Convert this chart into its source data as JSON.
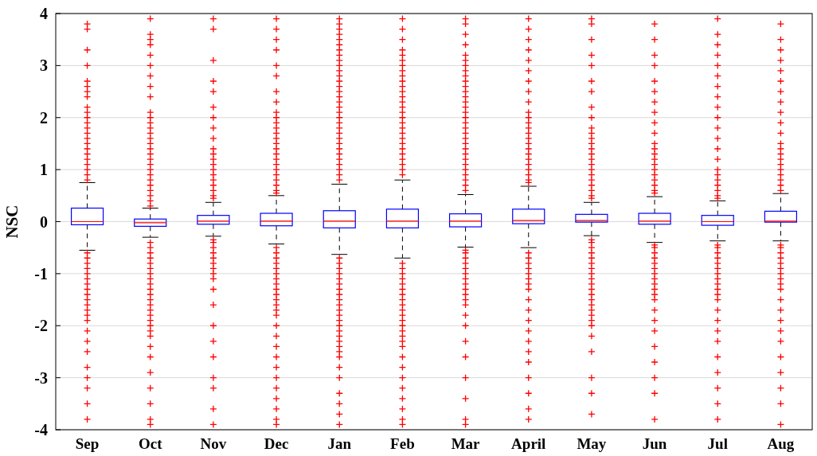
{
  "chart_data": {
    "type": "box",
    "ylabel": "NSC",
    "categories": [
      "Sep",
      "Oct",
      "Nov",
      "Dec",
      "Jan",
      "Feb",
      "Mar",
      "April",
      "May",
      "Jun",
      "Jul",
      "Aug"
    ],
    "ylim": [
      -4,
      4
    ],
    "yticks": [
      -4,
      -3,
      -2,
      -1,
      0,
      1,
      2,
      3,
      4
    ],
    "grid": "y",
    "marker": "cross",
    "series": [
      {
        "color": "#0000ff",
        "boxes": [
          {
            "low": -0.55,
            "q1": -0.06,
            "median": 0,
            "q3": 0.26,
            "high": 0.75,
            "outliers": [
              0.8,
              0.9,
              1,
              1.1,
              1.2,
              1.3,
              1.4,
              1.5,
              1.6,
              1.7,
              1.8,
              1.9,
              2,
              2.1,
              2.2,
              2.4,
              2.5,
              2.6,
              2.7,
              3,
              3.3,
              3.7,
              3.8,
              -0.6,
              -0.7,
              -0.8,
              -0.9,
              -1,
              -1.1,
              -1.2,
              -1.3,
              -1.4,
              -1.5,
              -1.6,
              -1.7,
              -1.8,
              -1.9,
              -2.1,
              -2.3,
              -2.5,
              -2.8,
              -3,
              -3.2,
              -3.5,
              -3.8
            ]
          },
          {
            "low": -0.3,
            "q1": -0.09,
            "median": -0.02,
            "q3": 0.05,
            "high": 0.26,
            "outliers": [
              0.3,
              0.4,
              0.5,
              0.6,
              0.7,
              0.8,
              0.9,
              1,
              1.1,
              1.2,
              1.3,
              1.4,
              1.5,
              1.6,
              1.7,
              1.8,
              1.9,
              2,
              2.1,
              2.4,
              2.6,
              2.8,
              3,
              3.2,
              3.4,
              3.5,
              3.6,
              3.9,
              -0.4,
              -0.5,
              -0.6,
              -0.7,
              -0.8,
              -0.9,
              -1,
              -1.1,
              -1.2,
              -1.3,
              -1.4,
              -1.5,
              -1.6,
              -1.7,
              -1.8,
              -1.9,
              -2,
              -2.1,
              -2.2,
              -2.4,
              -2.6,
              -2.9,
              -3.2,
              -3.5,
              -3.8,
              -3.9
            ]
          },
          {
            "low": -0.28,
            "q1": -0.05,
            "median": 0.01,
            "q3": 0.12,
            "high": 0.37,
            "outliers": [
              0.45,
              0.5,
              0.6,
              0.7,
              0.8,
              0.9,
              1,
              1.1,
              1.2,
              1.3,
              1.4,
              1.6,
              1.8,
              2,
              2.2,
              2.5,
              2.7,
              3.1,
              3.7,
              3.9,
              -0.35,
              -0.4,
              -0.5,
              -0.6,
              -0.7,
              -0.8,
              -0.9,
              -1,
              -1.1,
              -1.3,
              -1.6,
              -2,
              -2.3,
              -2.6,
              -3,
              -3.2,
              -3.6,
              -3.9
            ]
          },
          {
            "low": -0.43,
            "q1": -0.08,
            "median": 0.01,
            "q3": 0.16,
            "high": 0.5,
            "outliers": [
              0.55,
              0.6,
              0.7,
              0.8,
              0.9,
              1,
              1.1,
              1.2,
              1.3,
              1.4,
              1.5,
              1.6,
              1.7,
              1.8,
              1.9,
              2,
              2.1,
              2.3,
              2.5,
              2.8,
              3,
              3.3,
              3.5,
              3.7,
              3.9,
              -0.5,
              -0.6,
              -0.7,
              -0.8,
              -0.9,
              -1,
              -1.1,
              -1.2,
              -1.3,
              -1.4,
              -1.5,
              -1.6,
              -1.7,
              -1.8,
              -2,
              -2.2,
              -2.4,
              -2.6,
              -2.8,
              -3,
              -3.2,
              -3.4,
              -3.6,
              -3.8,
              -3.9
            ]
          },
          {
            "low": -0.63,
            "q1": -0.12,
            "median": 0.01,
            "q3": 0.21,
            "high": 0.72,
            "outliers": [
              0.8,
              0.9,
              1,
              1.1,
              1.2,
              1.3,
              1.4,
              1.5,
              1.6,
              1.7,
              1.8,
              1.9,
              2,
              2.1,
              2.2,
              2.3,
              2.4,
              2.5,
              2.6,
              2.7,
              2.8,
              2.9,
              3,
              3.1,
              3.2,
              3.3,
              3.4,
              3.5,
              3.6,
              3.7,
              3.8,
              3.9,
              -0.7,
              -0.8,
              -0.9,
              -1,
              -1.1,
              -1.2,
              -1.3,
              -1.4,
              -1.5,
              -1.6,
              -1.7,
              -1.8,
              -1.9,
              -2,
              -2.1,
              -2.2,
              -2.3,
              -2.4,
              -2.5,
              -2.6,
              -2.8,
              -3,
              -3.3,
              -3.5,
              -3.7,
              -3.9
            ]
          },
          {
            "low": -0.7,
            "q1": -0.12,
            "median": 0.01,
            "q3": 0.24,
            "high": 0.8,
            "outliers": [
              0.9,
              1,
              1.1,
              1.2,
              1.3,
              1.4,
              1.5,
              1.6,
              1.7,
              1.8,
              1.9,
              2,
              2.1,
              2.2,
              2.3,
              2.4,
              2.5,
              2.6,
              2.7,
              2.8,
              2.9,
              3,
              3.1,
              3.2,
              3.3,
              3.5,
              3.7,
              3.9,
              -0.8,
              -0.9,
              -1,
              -1.1,
              -1.2,
              -1.3,
              -1.4,
              -1.5,
              -1.6,
              -1.7,
              -1.8,
              -1.9,
              -2,
              -2.1,
              -2.2,
              -2.3,
              -2.4,
              -2.6,
              -2.8,
              -3,
              -3.2,
              -3.4,
              -3.6,
              -3.8,
              -3.9
            ]
          },
          {
            "low": -0.49,
            "q1": -0.1,
            "median": 0.01,
            "q3": 0.15,
            "high": 0.52,
            "outliers": [
              0.6,
              0.7,
              0.8,
              0.9,
              1,
              1.1,
              1.2,
              1.3,
              1.4,
              1.5,
              1.6,
              1.7,
              1.8,
              1.9,
              2,
              2.1,
              2.2,
              2.3,
              2.4,
              2.5,
              2.6,
              2.7,
              2.8,
              2.9,
              3,
              3.1,
              3.2,
              3.4,
              3.6,
              3.8,
              3.9,
              -0.55,
              -0.6,
              -0.7,
              -0.8,
              -0.9,
              -1,
              -1.1,
              -1.2,
              -1.3,
              -1.4,
              -1.5,
              -1.6,
              -1.8,
              -2,
              -2.3,
              -2.6,
              -3,
              -3.4,
              -3.8,
              -3.9
            ]
          },
          {
            "low": -0.5,
            "q1": -0.04,
            "median": 0.02,
            "q3": 0.24,
            "high": 0.68,
            "outliers": [
              0.75,
              0.8,
              0.9,
              1,
              1.1,
              1.2,
              1.3,
              1.4,
              1.5,
              1.6,
              1.7,
              1.8,
              1.9,
              2,
              2.1,
              2.3,
              2.5,
              2.7,
              2.9,
              3.1,
              3.3,
              3.5,
              3.7,
              3.9,
              -0.6,
              -0.7,
              -0.8,
              -0.9,
              -1,
              -1.1,
              -1.2,
              -1.3,
              -1.5,
              -1.7,
              -1.9,
              -2.1,
              -2.3,
              -2.5,
              -2.7,
              -3,
              -3.3,
              -3.6,
              -3.8
            ]
          },
          {
            "low": -0.27,
            "q1": -0.01,
            "median": 0.02,
            "q3": 0.14,
            "high": 0.37,
            "outliers": [
              0.45,
              0.5,
              0.6,
              0.7,
              0.8,
              0.9,
              1,
              1.1,
              1.2,
              1.3,
              1.4,
              1.5,
              1.6,
              1.7,
              1.8,
              2,
              2.2,
              2.5,
              2.7,
              3,
              3.2,
              3.5,
              3.8,
              3.9,
              -0.35,
              -0.4,
              -0.5,
              -0.6,
              -0.7,
              -0.8,
              -0.9,
              -1,
              -1.1,
              -1.2,
              -1.3,
              -1.4,
              -1.5,
              -1.6,
              -1.7,
              -1.8,
              -1.9,
              -2,
              -2.2,
              -2.5,
              -3,
              -3.3,
              -3.7
            ]
          },
          {
            "low": -0.4,
            "q1": -0.05,
            "median": 0.01,
            "q3": 0.16,
            "high": 0.48,
            "outliers": [
              0.55,
              0.6,
              0.7,
              0.8,
              0.9,
              1,
              1.1,
              1.2,
              1.3,
              1.4,
              1.5,
              1.7,
              1.9,
              2.1,
              2.3,
              2.5,
              2.7,
              3,
              3.2,
              3.5,
              3.8,
              -0.45,
              -0.5,
              -0.6,
              -0.7,
              -0.8,
              -0.9,
              -1,
              -1.1,
              -1.2,
              -1.3,
              -1.4,
              -1.5,
              -1.7,
              -1.9,
              -2.1,
              -2.4,
              -2.7,
              -3,
              -3.3,
              -3.8
            ]
          },
          {
            "low": -0.37,
            "q1": -0.07,
            "median": 0,
            "q3": 0.12,
            "high": 0.4,
            "outliers": [
              0.45,
              0.5,
              0.6,
              0.7,
              0.8,
              0.9,
              1,
              1.2,
              1.4,
              1.6,
              1.8,
              2,
              2.2,
              2.4,
              2.6,
              2.8,
              3,
              3.2,
              3.4,
              3.6,
              3.9,
              -0.45,
              -0.5,
              -0.6,
              -0.7,
              -0.8,
              -0.9,
              -1,
              -1.1,
              -1.2,
              -1.3,
              -1.4,
              -1.5,
              -1.7,
              -1.9,
              -2.1,
              -2.3,
              -2.6,
              -2.9,
              -3.2,
              -3.5,
              -3.8
            ]
          },
          {
            "low": -0.37,
            "q1": -0.01,
            "median": 0.01,
            "q3": 0.2,
            "high": 0.54,
            "outliers": [
              0.6,
              0.7,
              0.8,
              0.9,
              1,
              1.1,
              1.2,
              1.3,
              1.4,
              1.5,
              1.7,
              1.9,
              2.1,
              2.3,
              2.5,
              2.7,
              2.9,
              3.1,
              3.3,
              3.5,
              3.8,
              -0.45,
              -0.5,
              -0.6,
              -0.7,
              -0.8,
              -0.9,
              -1,
              -1.1,
              -1.2,
              -1.3,
              -1.5,
              -1.7,
              -1.9,
              -2.1,
              -2.3,
              -2.6,
              -2.9,
              -3.2,
              -3.5,
              -3.9
            ]
          }
        ]
      }
    ]
  }
}
